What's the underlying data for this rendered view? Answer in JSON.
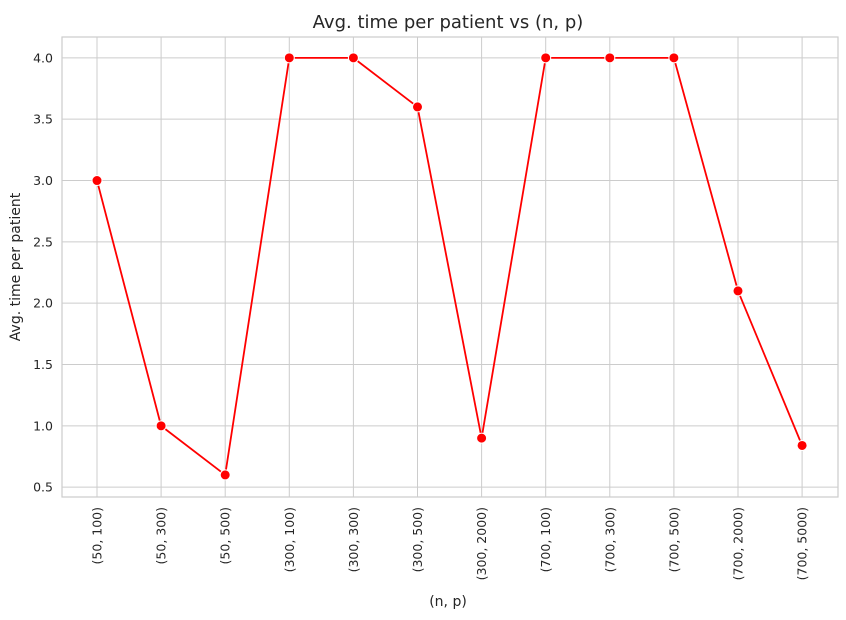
{
  "chart_data": {
    "type": "line",
    "title": "Avg. time per patient vs (n, p)",
    "xlabel": "(n, p)",
    "ylabel": "Avg. time per patient",
    "categories": [
      "(50, 100)",
      "(50, 300)",
      "(50, 500)",
      "(300, 100)",
      "(300, 300)",
      "(300, 500)",
      "(300, 2000)",
      "(700, 100)",
      "(700, 300)",
      "(700, 500)",
      "(700, 2000)",
      "(700, 5000)"
    ],
    "values": [
      3.0,
      1.0,
      0.6,
      4.0,
      4.0,
      3.6,
      0.9,
      4.0,
      4.0,
      4.0,
      2.1,
      0.84
    ],
    "ylim": [
      0.42,
      4.17
    ],
    "yticks": [
      "0.5",
      "1.0",
      "1.5",
      "2.0",
      "2.5",
      "3.0",
      "3.5",
      "4.0"
    ],
    "grid": true,
    "line_color": "#ff0000",
    "marker_color": "#ff0000"
  }
}
